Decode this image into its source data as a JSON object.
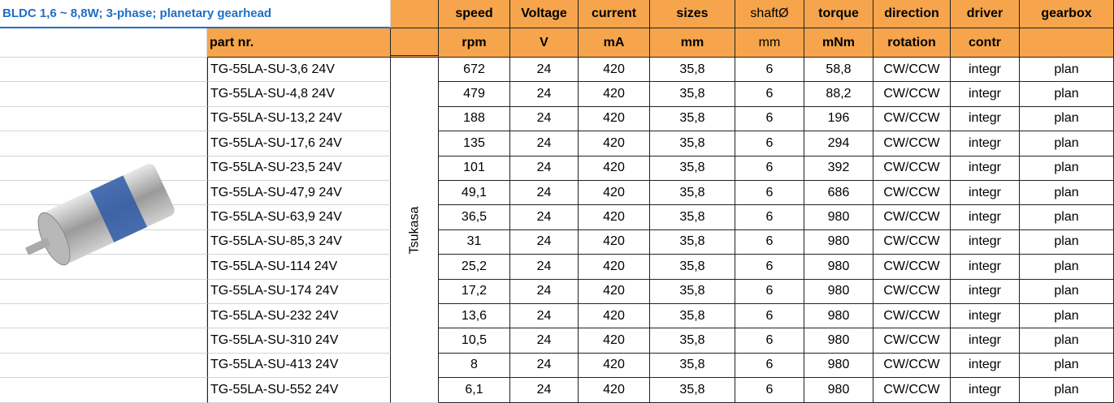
{
  "header": {
    "title": "BLDC 1,6 ~ 8,8W;  3-phase; planetary gearhead",
    "columns": [
      "speed",
      "Voltage",
      "current",
      "sizes",
      "shaftØ",
      "torque",
      "direction",
      "driver",
      "gearbox"
    ],
    "units": [
      "part nr.",
      "rpm",
      "V",
      "mA",
      "mm",
      "mm",
      "mNm",
      "rotation",
      "contr"
    ]
  },
  "manufacturer": "Tsukasa",
  "table": {
    "rows": [
      [
        "TG-55LA-SU-3,6 24V",
        "672",
        "24",
        "420",
        "35,8",
        "6",
        "58,8",
        "CW/CCW",
        "integr",
        "plan"
      ],
      [
        "TG-55LA-SU-4,8 24V",
        "479",
        "24",
        "420",
        "35,8",
        "6",
        "88,2",
        "CW/CCW",
        "integr",
        "plan"
      ],
      [
        "TG-55LA-SU-13,2 24V",
        "188",
        "24",
        "420",
        "35,8",
        "6",
        "196",
        "CW/CCW",
        "integr",
        "plan"
      ],
      [
        "TG-55LA-SU-17,6 24V",
        "135",
        "24",
        "420",
        "35,8",
        "6",
        "294",
        "CW/CCW",
        "integr",
        "plan"
      ],
      [
        "TG-55LA-SU-23,5 24V",
        "101",
        "24",
        "420",
        "35,8",
        "6",
        "392",
        "CW/CCW",
        "integr",
        "plan"
      ],
      [
        "TG-55LA-SU-47,9 24V",
        "49,1",
        "24",
        "420",
        "35,8",
        "6",
        "686",
        "CW/CCW",
        "integr",
        "plan"
      ],
      [
        "TG-55LA-SU-63,9 24V",
        "36,5",
        "24",
        "420",
        "35,8",
        "6",
        "980",
        "CW/CCW",
        "integr",
        "plan"
      ],
      [
        "TG-55LA-SU-85,3 24V",
        "31",
        "24",
        "420",
        "35,8",
        "6",
        "980",
        "CW/CCW",
        "integr",
        "plan"
      ],
      [
        "TG-55LA-SU-114 24V",
        "25,2",
        "24",
        "420",
        "35,8",
        "6",
        "980",
        "CW/CCW",
        "integr",
        "plan"
      ],
      [
        "TG-55LA-SU-174 24V",
        "17,2",
        "24",
        "420",
        "35,8",
        "6",
        "980",
        "CW/CCW",
        "integr",
        "plan"
      ],
      [
        "TG-55LA-SU-232 24V",
        "13,6",
        "24",
        "420",
        "35,8",
        "6",
        "980",
        "CW/CCW",
        "integr",
        "plan"
      ],
      [
        "TG-55LA-SU-310 24V",
        "10,5",
        "24",
        "420",
        "35,8",
        "6",
        "980",
        "CW/CCW",
        "integr",
        "plan"
      ],
      [
        "TG-55LA-SU-413 24V",
        "8",
        "24",
        "420",
        "35,8",
        "6",
        "980",
        "CW/CCW",
        "integr",
        "plan"
      ],
      [
        "TG-55LA-SU-552 24V",
        "6,1",
        "24",
        "420",
        "35,8",
        "6",
        "980",
        "CW/CCW",
        "integr",
        "plan"
      ]
    ]
  }
}
